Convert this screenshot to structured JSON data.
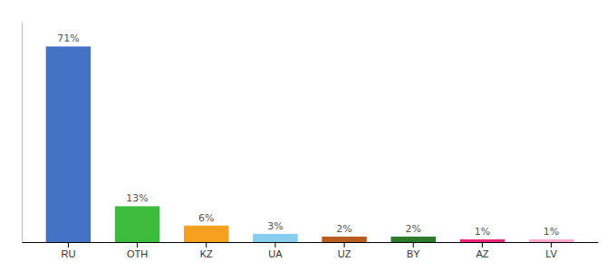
{
  "chart_data": {
    "type": "bar",
    "categories": [
      "RU",
      "OTH",
      "KZ",
      "UA",
      "UZ",
      "BY",
      "AZ",
      "LV"
    ],
    "values": [
      71,
      13,
      6,
      3,
      2,
      2,
      1,
      1
    ],
    "value_labels": [
      "71%",
      "13%",
      "6%",
      "3%",
      "2%",
      "2%",
      "1%",
      "1%"
    ],
    "colors": [
      "#4472c4",
      "#3dbb3d",
      "#f7a020",
      "#88ccee",
      "#b85c20",
      "#2d7a2d",
      "#ee2277",
      "#ffaacc"
    ],
    "ylim": [
      0,
      80
    ],
    "data_labels": true,
    "tick_labels": "x",
    "grid": false
  }
}
